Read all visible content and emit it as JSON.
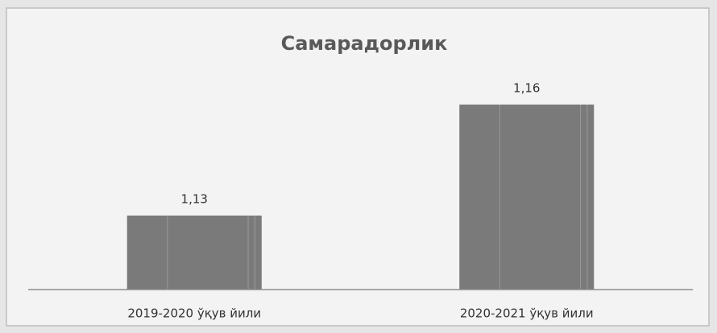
{
  "chart_data": {
    "type": "bar",
    "title": "Самарадорлик",
    "categories": [
      "2019-2020 ўқув йили",
      "2020-2021 ўқув йили"
    ],
    "values": [
      1.13,
      1.16
    ],
    "value_labels": [
      "1,13",
      "1,16"
    ],
    "color": "#7a7a7a",
    "ylim": [
      1.11,
      1.18
    ]
  }
}
